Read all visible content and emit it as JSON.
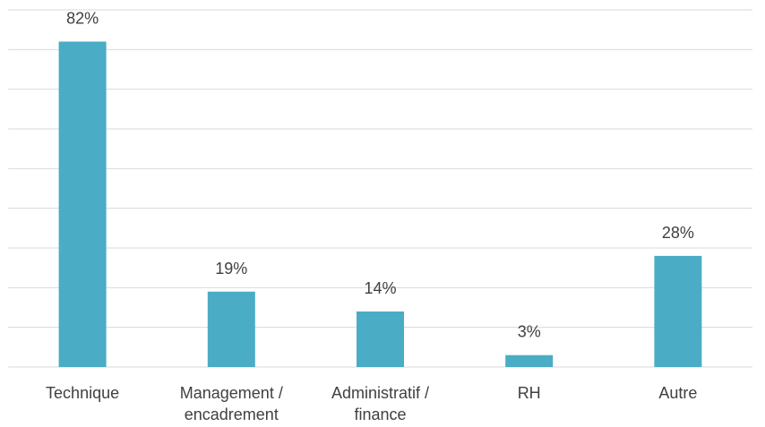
{
  "chart_data": {
    "type": "bar",
    "categories": [
      "Technique",
      "Management / encadrement",
      "Administratif / finance",
      "RH",
      "Autre"
    ],
    "values": [
      82,
      19,
      14,
      3,
      28
    ],
    "value_labels": [
      "82%",
      "19%",
      "14%",
      "3%",
      "28%"
    ],
    "color": "#4bacc6",
    "ylim": [
      0,
      90
    ],
    "yticks": [
      0,
      10,
      20,
      30,
      40,
      50,
      60,
      70,
      80,
      90
    ],
    "grid": true
  }
}
